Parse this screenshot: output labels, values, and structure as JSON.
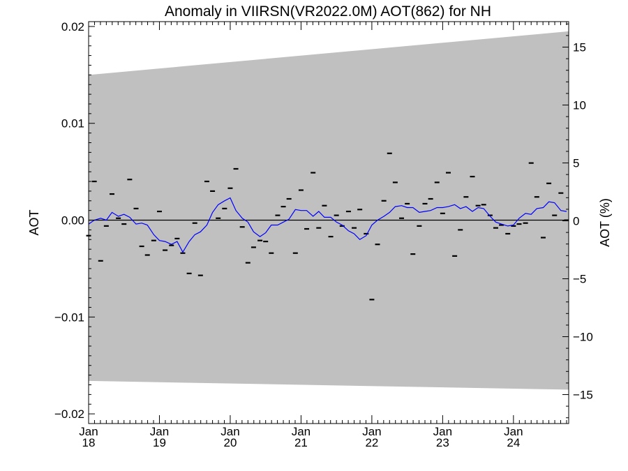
{
  "chart_data": {
    "type": "line",
    "title": "Anomaly in VIIRSN(VR2022.0M) AOT(862) for NH",
    "ylabel": "AOT",
    "ylabel_right": "AOT (%)",
    "ylim": [
      -0.021,
      0.0205
    ],
    "ylim_right": [
      -17.5,
      17.2
    ],
    "yticks": [
      -0.02,
      -0.01,
      0.0,
      0.01,
      0.02
    ],
    "yticklabels": [
      "−0.02",
      "−0.01",
      "0.00",
      "0.01",
      "0.02"
    ],
    "yticks_right": [
      -15,
      -10,
      -5,
      0,
      5,
      10,
      15
    ],
    "yticklabels_right": [
      "−15",
      "−10",
      "−5",
      "0",
      "5",
      "10",
      "15"
    ],
    "xlim": [
      2018.0,
      2024.78
    ],
    "xticks": [
      {
        "x": 2018,
        "label1": "Jan",
        "label2": "18"
      },
      {
        "x": 2019,
        "label1": "Jan",
        "label2": "19"
      },
      {
        "x": 2020,
        "label1": "Jan",
        "label2": "20"
      },
      {
        "x": 2021,
        "label1": "Jan",
        "label2": "21"
      },
      {
        "x": 2022,
        "label1": "Jan",
        "label2": "22"
      },
      {
        "x": 2023,
        "label1": "Jan",
        "label2": "23"
      },
      {
        "x": 2024,
        "label1": "Jan",
        "label2": "24"
      }
    ],
    "band": {
      "color": "#c0c0c0",
      "upper": [
        [
          2018.0,
          0.015
        ],
        [
          2024.78,
          0.0195
        ]
      ],
      "lower": [
        [
          2018.0,
          -0.0166
        ],
        [
          2024.78,
          -0.0175
        ]
      ]
    },
    "zero_line": 0,
    "monthly": {
      "name": "monthly anomaly",
      "color": "#000000",
      "x": [
        2018.0,
        2018.08,
        2018.17,
        2018.25,
        2018.33,
        2018.42,
        2018.5,
        2018.58,
        2018.67,
        2018.75,
        2018.83,
        2018.92,
        2019.0,
        2019.08,
        2019.17,
        2019.25,
        2019.33,
        2019.42,
        2019.5,
        2019.58,
        2019.67,
        2019.75,
        2019.83,
        2019.92,
        2020.0,
        2020.08,
        2020.17,
        2020.25,
        2020.33,
        2020.42,
        2020.5,
        2020.58,
        2020.67,
        2020.75,
        2020.83,
        2020.92,
        2021.0,
        2021.08,
        2021.17,
        2021.25,
        2021.33,
        2021.42,
        2021.5,
        2021.58,
        2021.67,
        2021.75,
        2021.83,
        2021.92,
        2022.0,
        2022.08,
        2022.17,
        2022.25,
        2022.33,
        2022.42,
        2022.5,
        2022.58,
        2022.67,
        2022.75,
        2022.83,
        2022.92,
        2023.0,
        2023.08,
        2023.17,
        2023.25,
        2023.33,
        2023.42,
        2023.5,
        2023.58,
        2023.67,
        2023.75,
        2023.83,
        2023.92,
        2024.0,
        2024.08,
        2024.17,
        2024.25,
        2024.33,
        2024.42,
        2024.5,
        2024.58,
        2024.67,
        2024.75
      ],
      "values": [
        -0.0016,
        0.004,
        -0.0042,
        -0.0006,
        0.0027,
        0.0002,
        -0.0004,
        0.0042,
        0.0012,
        -0.0027,
        -0.0036,
        -0.0021,
        0.0009,
        -0.0031,
        -0.0026,
        -0.0019,
        -0.0034,
        -0.0055,
        -0.0003,
        -0.0057,
        0.004,
        0.003,
        0.0002,
        0.0012,
        0.0033,
        0.0053,
        -0.0007,
        -0.0044,
        -0.0028,
        -0.0021,
        -0.0022,
        -0.0034,
        0.0005,
        0.0014,
        0.0022,
        -0.0034,
        0.0031,
        -0.0009,
        0.0049,
        -0.0008,
        0.0015,
        -0.0017,
        0.0005,
        -0.0006,
        0.0009,
        -0.0008,
        0.0011,
        -0.0014,
        -0.0082,
        -0.0025,
        0.002,
        0.0069,
        0.0039,
        0.0002,
        0.0017,
        -0.0035,
        -0.0006,
        0.0017,
        0.0022,
        0.0039,
        0.0007,
        0.0049,
        -0.0037,
        -0.001,
        0.0024,
        0.0045,
        0.0015,
        0.0016,
        0.0005,
        -0.0008,
        -0.0005,
        -0.0014,
        -0.0006,
        -0.0004,
        -0.0003,
        0.0059,
        0.0024,
        -0.0018,
        0.0038,
        0.0005,
        0.0028,
        0.0
      ]
    },
    "smoothed": {
      "name": "running mean",
      "color": "#0000ff",
      "x": [
        2018.0,
        2018.08,
        2018.17,
        2018.25,
        2018.33,
        2018.42,
        2018.5,
        2018.58,
        2018.67,
        2018.75,
        2018.83,
        2018.92,
        2019.0,
        2019.08,
        2019.17,
        2019.25,
        2019.33,
        2019.42,
        2019.5,
        2019.58,
        2019.67,
        2019.75,
        2019.83,
        2019.92,
        2020.0,
        2020.08,
        2020.17,
        2020.25,
        2020.33,
        2020.42,
        2020.5,
        2020.58,
        2020.67,
        2020.75,
        2020.83,
        2020.92,
        2021.0,
        2021.08,
        2021.17,
        2021.25,
        2021.33,
        2021.42,
        2021.5,
        2021.58,
        2021.67,
        2021.75,
        2021.83,
        2021.92,
        2022.0,
        2022.08,
        2022.17,
        2022.25,
        2022.33,
        2022.42,
        2022.5,
        2022.58,
        2022.67,
        2022.75,
        2022.83,
        2022.92,
        2023.0,
        2023.08,
        2023.17,
        2023.25,
        2023.33,
        2023.42,
        2023.5,
        2023.58,
        2023.67,
        2023.75,
        2023.83,
        2023.92,
        2024.0,
        2024.08,
        2024.17,
        2024.25,
        2024.33,
        2024.42,
        2024.5,
        2024.58,
        2024.67,
        2024.75
      ],
      "values": [
        -0.0004,
        0.0,
        0.0002,
        0.0,
        0.0008,
        0.0004,
        0.0006,
        0.0003,
        -0.0004,
        -0.0003,
        -0.0005,
        -0.0015,
        -0.0021,
        -0.0022,
        -0.0025,
        -0.0022,
        -0.0033,
        -0.0022,
        -0.0015,
        -0.0012,
        -0.0005,
        0.0008,
        0.0016,
        0.002,
        0.0023,
        0.001,
        0.0002,
        -0.0002,
        -0.0012,
        -0.0017,
        -0.0013,
        -0.0005,
        -0.0005,
        -0.0002,
        0.0001,
        0.0011,
        0.001,
        0.001,
        0.0004,
        0.0009,
        0.0003,
        0.0003,
        -0.0002,
        -0.0005,
        -0.0011,
        -0.0014,
        -0.002,
        -0.0016,
        -0.0005,
        0.0,
        0.0004,
        0.0008,
        0.0014,
        0.0015,
        0.0013,
        0.0013,
        0.0008,
        0.0009,
        0.001,
        0.0013,
        0.0013,
        0.0014,
        0.0016,
        0.0012,
        0.0014,
        0.0009,
        0.0013,
        0.0012,
        0.0004,
        -0.0002,
        -0.0004,
        -0.0006,
        -0.0005,
        0.0002,
        0.0007,
        0.0006,
        0.0012,
        0.0013,
        0.0019,
        0.0018,
        0.001,
        0.0009
      ]
    }
  }
}
